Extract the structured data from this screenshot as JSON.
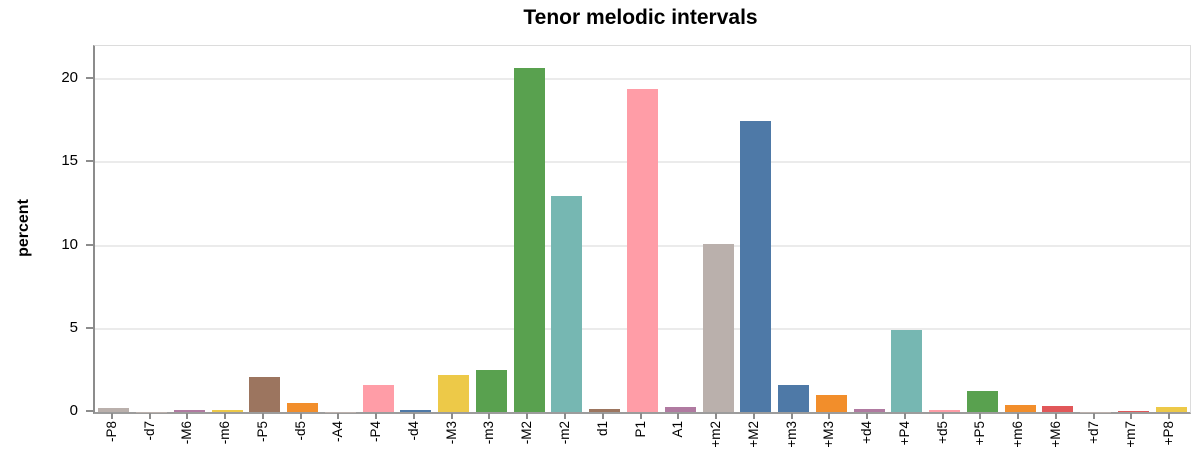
{
  "chart_data": {
    "type": "bar",
    "title": "Tenor melodic intervals",
    "xlabel": "",
    "ylabel": "percent",
    "ylim": [
      0,
      22
    ],
    "yticks": [
      0,
      5,
      10,
      15,
      20
    ],
    "grid": true,
    "legend": "none",
    "categories": [
      "-P8",
      "-d7",
      "-M6",
      "-m6",
      "-P5",
      "-d5",
      "-A4",
      "-P4",
      "-d4",
      "-M3",
      "-m3",
      "-M2",
      "-m2",
      "d1",
      "P1",
      "A1",
      "+m2",
      "+M2",
      "+m3",
      "+M3",
      "+d4",
      "+P4",
      "+d5",
      "+P5",
      "+m6",
      "+M6",
      "+d7",
      "+m7",
      "+P8"
    ],
    "values": [
      0.25,
      0.02,
      0.15,
      0.12,
      2.1,
      0.55,
      0.02,
      1.65,
      0.12,
      2.25,
      2.5,
      20.7,
      13.0,
      0.2,
      19.4,
      0.3,
      10.1,
      17.5,
      1.6,
      1.05,
      0.16,
      4.95,
      0.1,
      1.25,
      0.45,
      0.38,
      0.02,
      0.06,
      0.3
    ],
    "bar_colors": [
      "#bab0ac",
      "#bab0ac",
      "#b07aa1",
      "#edc948",
      "#9c755f",
      "#f28e2b",
      "#bab0ac",
      "#ff9da7",
      "#4e79a7",
      "#edc948",
      "#59a14f",
      "#59a14f",
      "#76b7b2",
      "#9c755f",
      "#ff9da7",
      "#b07aa1",
      "#bab0ac",
      "#4e79a7",
      "#4e79a7",
      "#f28e2b",
      "#b07aa1",
      "#76b7b2",
      "#ff9da7",
      "#59a14f",
      "#f28e2b",
      "#e15759",
      "#bab0ac",
      "#e15759",
      "#edc948"
    ],
    "axis_color": "#8c8c8c",
    "grid_color": "#ebebeb",
    "background_color": "#ffffff"
  }
}
